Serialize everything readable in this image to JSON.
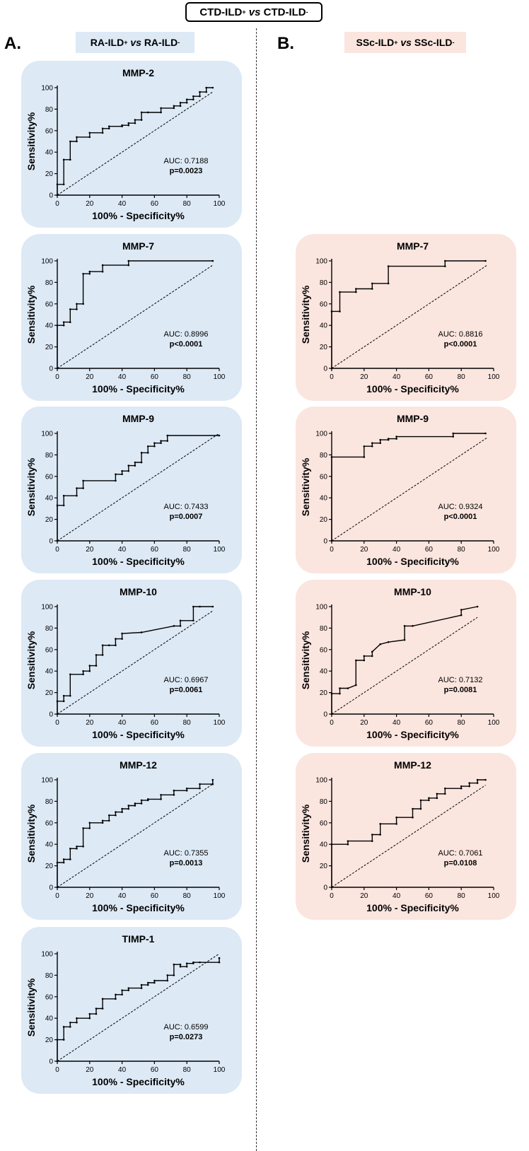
{
  "header": {
    "title_left": "CTD-ILD",
    "title_left_sup": "+",
    "title_vs": "vs",
    "title_right": "CTD-ILD",
    "title_right_sup": "-"
  },
  "columns": [
    {
      "letter": "A.",
      "group_a": "RA-ILD",
      "group_a_sup": "+",
      "vs": "vs",
      "group_b": "RA-ILD",
      "group_b_sup": "-"
    },
    {
      "letter": "B.",
      "group_a": "SSc-ILD",
      "group_a_sup": "+",
      "vs": "vs",
      "group_b": "SSc-ILD",
      "group_b_sup": "-"
    }
  ],
  "colors": {
    "ra_bg": "#dde9f5",
    "ssc_bg": "#fbe5df",
    "line": "#000000"
  },
  "chart_data": [
    {
      "id": "ra-mmp2",
      "type": "line",
      "title": "MMP-2",
      "xlabel": "100% - Specificity%",
      "ylabel": "Sensitivity%",
      "xlim": [
        0,
        100
      ],
      "ylim": [
        0,
        100
      ],
      "xticks": [
        0,
        20,
        40,
        60,
        80,
        100
      ],
      "yticks": [
        0,
        20,
        40,
        60,
        80,
        100
      ],
      "auc_label": "AUC: 0.7188",
      "p_label": "p=0.0023",
      "reference_line": [
        [
          0,
          0
        ],
        [
          96,
          96
        ]
      ],
      "series": [
        {
          "name": "ROC",
          "x": [
            0,
            0,
            4,
            4,
            8,
            8,
            12,
            12,
            20,
            20,
            28,
            28,
            32,
            32,
            40,
            40,
            44,
            44,
            48,
            48,
            52,
            52,
            56,
            56,
            64,
            64,
            72,
            72,
            76,
            76,
            80,
            80,
            84,
            84,
            88,
            88,
            92,
            92,
            96
          ],
          "y": [
            0,
            10,
            10,
            33,
            33,
            50,
            50,
            54,
            54,
            58,
            58,
            62,
            62,
            64,
            64,
            65,
            65,
            67,
            67,
            70,
            70,
            77,
            77,
            77,
            77,
            81,
            81,
            83,
            83,
            86,
            86,
            89,
            89,
            92,
            92,
            96,
            96,
            100,
            100
          ]
        }
      ]
    },
    {
      "id": "ra-mmp7",
      "type": "line",
      "title": "MMP-7",
      "xlabel": "100% - Specificity%",
      "ylabel": "Sensitivity%",
      "xlim": [
        0,
        100
      ],
      "ylim": [
        0,
        100
      ],
      "xticks": [
        0,
        20,
        40,
        60,
        80,
        100
      ],
      "yticks": [
        0,
        20,
        40,
        60,
        80,
        100
      ],
      "auc_label": "AUC: 0.8996",
      "p_label": "p<0.0001",
      "reference_line": [
        [
          0,
          0
        ],
        [
          96,
          96
        ]
      ],
      "series": [
        {
          "name": "ROC",
          "x": [
            0,
            0,
            4,
            4,
            8,
            8,
            12,
            12,
            16,
            16,
            20,
            20,
            28,
            28,
            44,
            44,
            96
          ],
          "y": [
            0,
            40,
            40,
            43,
            43,
            55,
            55,
            60,
            60,
            88,
            88,
            90,
            90,
            96,
            96,
            100,
            100
          ]
        }
      ]
    },
    {
      "id": "ra-mmp9",
      "type": "line",
      "title": "MMP-9",
      "xlabel": "100% - Specificity%",
      "ylabel": "Sensitivity%",
      "xlim": [
        0,
        100
      ],
      "ylim": [
        0,
        100
      ],
      "xticks": [
        0,
        20,
        40,
        60,
        80,
        100
      ],
      "yticks": [
        0,
        20,
        40,
        60,
        80,
        100
      ],
      "auc_label": "AUC: 0.7433",
      "p_label": "p=0.0007",
      "reference_line": [
        [
          0,
          0
        ],
        [
          100,
          100
        ]
      ],
      "series": [
        {
          "name": "ROC",
          "x": [
            0,
            0,
            4,
            4,
            12,
            12,
            16,
            16,
            36,
            36,
            40,
            40,
            44,
            44,
            48,
            48,
            52,
            52,
            56,
            56,
            60,
            60,
            64,
            64,
            68,
            68,
            100
          ],
          "y": [
            0,
            33,
            33,
            42,
            42,
            49,
            49,
            56,
            56,
            62,
            62,
            65,
            65,
            70,
            70,
            73,
            73,
            82,
            82,
            88,
            88,
            91,
            91,
            93,
            93,
            98,
            98
          ]
        }
      ]
    },
    {
      "id": "ra-mmp10",
      "type": "line",
      "title": "MMP-10",
      "xlabel": "100% - Specificity%",
      "ylabel": "Sensitivity%",
      "xlim": [
        0,
        100
      ],
      "ylim": [
        0,
        100
      ],
      "xticks": [
        0,
        20,
        40,
        60,
        80,
        100
      ],
      "yticks": [
        0,
        20,
        40,
        60,
        80,
        100
      ],
      "auc_label": "AUC: 0.6967",
      "p_label": "p=0.0061",
      "reference_line": [
        [
          0,
          0
        ],
        [
          96,
          96
        ]
      ],
      "series": [
        {
          "name": "ROC",
          "x": [
            0,
            0,
            4,
            4,
            8,
            8,
            16,
            16,
            20,
            20,
            24,
            24,
            28,
            28,
            32,
            32,
            36,
            36,
            40,
            40,
            52,
            72,
            76,
            76,
            84,
            84,
            88,
            96
          ],
          "y": [
            0,
            12,
            12,
            17,
            17,
            37,
            37,
            40,
            40,
            45,
            45,
            55,
            55,
            64,
            64,
            64,
            64,
            70,
            70,
            75,
            76,
            82,
            82,
            87,
            87,
            100,
            100,
            100
          ]
        }
      ]
    },
    {
      "id": "ra-mmp12",
      "type": "line",
      "title": "MMP-12",
      "xlabel": "100% - Specificity%",
      "ylabel": "Sensitivity%",
      "xlim": [
        0,
        100
      ],
      "ylim": [
        0,
        100
      ],
      "xticks": [
        0,
        20,
        40,
        60,
        80,
        100
      ],
      "yticks": [
        0,
        20,
        40,
        60,
        80,
        100
      ],
      "auc_label": "AUC: 0.7355",
      "p_label": "p=0.0013",
      "reference_line": [
        [
          0,
          0
        ],
        [
          96,
          96
        ]
      ],
      "series": [
        {
          "name": "ROC",
          "x": [
            0,
            0,
            4,
            4,
            8,
            8,
            12,
            12,
            16,
            16,
            20,
            20,
            28,
            28,
            32,
            32,
            36,
            36,
            40,
            40,
            44,
            44,
            48,
            48,
            52,
            52,
            56,
            56,
            64,
            64,
            72,
            72,
            80,
            80,
            88,
            88,
            96,
            96
          ],
          "y": [
            0,
            23,
            23,
            26,
            26,
            36,
            36,
            38,
            38,
            55,
            55,
            60,
            60,
            62,
            62,
            67,
            67,
            70,
            70,
            73,
            73,
            76,
            76,
            78,
            78,
            81,
            81,
            82,
            82,
            86,
            86,
            90,
            90,
            92,
            92,
            96,
            96,
            100
          ]
        }
      ]
    },
    {
      "id": "ra-timp1",
      "type": "line",
      "title": "TIMP-1",
      "xlabel": "100% - Specificity%",
      "ylabel": "Sensitivity%",
      "xlim": [
        0,
        100
      ],
      "ylim": [
        0,
        100
      ],
      "xticks": [
        0,
        20,
        40,
        60,
        80,
        100
      ],
      "yticks": [
        0,
        20,
        40,
        60,
        80,
        100
      ],
      "auc_label": "AUC: 0.6599",
      "p_label": "p=0.0273",
      "reference_line": [
        [
          0,
          0
        ],
        [
          100,
          100
        ]
      ],
      "series": [
        {
          "name": "ROC",
          "x": [
            0,
            0,
            4,
            4,
            8,
            8,
            12,
            12,
            20,
            20,
            24,
            24,
            28,
            28,
            36,
            36,
            40,
            40,
            44,
            44,
            52,
            52,
            56,
            56,
            60,
            60,
            68,
            68,
            72,
            72,
            76,
            76,
            80,
            80,
            84,
            84,
            88,
            88,
            100,
            100
          ],
          "y": [
            0,
            20,
            20,
            32,
            32,
            36,
            36,
            40,
            40,
            44,
            44,
            49,
            49,
            58,
            58,
            62,
            62,
            66,
            66,
            68,
            68,
            71,
            71,
            73,
            73,
            75,
            75,
            80,
            80,
            90,
            90,
            88,
            88,
            91,
            91,
            92,
            92,
            92,
            92,
            96
          ]
        }
      ]
    },
    {
      "id": "ssc-mmp7",
      "type": "line",
      "title": "MMP-7",
      "xlabel": "100% - Specificity%",
      "ylabel": "Sensitivity%",
      "xlim": [
        0,
        100
      ],
      "ylim": [
        0,
        100
      ],
      "xticks": [
        0,
        20,
        40,
        60,
        80,
        100
      ],
      "yticks": [
        0,
        20,
        40,
        60,
        80,
        100
      ],
      "auc_label": "AUC: 0.8816",
      "p_label": "p<0.0001",
      "reference_line": [
        [
          0,
          0
        ],
        [
          96,
          96
        ]
      ],
      "series": [
        {
          "name": "ROC",
          "x": [
            0,
            0,
            5,
            5,
            15,
            15,
            25,
            25,
            35,
            35,
            70,
            70,
            95
          ],
          "y": [
            0,
            53,
            53,
            71,
            71,
            74,
            74,
            79,
            79,
            95,
            95,
            100,
            100
          ]
        }
      ]
    },
    {
      "id": "ssc-mmp9",
      "type": "line",
      "title": "MMP-9",
      "xlabel": "100% - Specificity%",
      "ylabel": "Sensitivity%",
      "xlim": [
        0,
        100
      ],
      "ylim": [
        0,
        100
      ],
      "xticks": [
        0,
        20,
        40,
        60,
        80,
        100
      ],
      "yticks": [
        0,
        20,
        40,
        60,
        80,
        100
      ],
      "auc_label": "AUC: 0.9324",
      "p_label": "p<0.0001",
      "reference_line": [
        [
          0,
          0
        ],
        [
          96,
          96
        ]
      ],
      "series": [
        {
          "name": "ROC",
          "x": [
            0,
            0,
            20,
            20,
            25,
            25,
            30,
            30,
            35,
            35,
            40,
            40,
            75,
            75,
            95
          ],
          "y": [
            0,
            78,
            78,
            88,
            88,
            91,
            91,
            94,
            94,
            95,
            95,
            97,
            97,
            100,
            100
          ]
        }
      ]
    },
    {
      "id": "ssc-mmp10",
      "type": "line",
      "title": "MMP-10",
      "xlabel": "100% - Specificity%",
      "ylabel": "Sensitivity%",
      "xlim": [
        0,
        100
      ],
      "ylim": [
        0,
        100
      ],
      "xticks": [
        0,
        20,
        40,
        60,
        80,
        100
      ],
      "yticks": [
        0,
        20,
        40,
        60,
        80,
        100
      ],
      "auc_label": "AUC: 0.7132",
      "p_label": "p=0.0081",
      "reference_line": [
        [
          0,
          0
        ],
        [
          90,
          90
        ]
      ],
      "series": [
        {
          "name": "ROC",
          "x": [
            0,
            0,
            5,
            5,
            10,
            15,
            15,
            20,
            20,
            25,
            25,
            30,
            35,
            45,
            45,
            50,
            80,
            80,
            90
          ],
          "y": [
            0,
            19,
            19,
            24,
            24,
            27,
            50,
            50,
            54,
            54,
            58,
            65,
            67,
            69,
            82,
            82,
            92,
            97,
            100
          ]
        }
      ]
    },
    {
      "id": "ssc-mmp12",
      "type": "line",
      "title": "MMP-12",
      "xlabel": "100% - Specificity%",
      "ylabel": "Sensitivity%",
      "xlim": [
        0,
        100
      ],
      "ylim": [
        0,
        100
      ],
      "xticks": [
        0,
        20,
        40,
        60,
        80,
        100
      ],
      "yticks": [
        0,
        20,
        40,
        60,
        80,
        100
      ],
      "auc_label": "AUC: 0.7061",
      "p_label": "p=0.0108",
      "reference_line": [
        [
          0,
          0
        ],
        [
          95,
          95
        ]
      ],
      "series": [
        {
          "name": "ROC",
          "x": [
            0,
            0,
            10,
            10,
            25,
            25,
            30,
            30,
            40,
            40,
            50,
            50,
            55,
            55,
            60,
            60,
            65,
            65,
            70,
            70,
            80,
            80,
            85,
            85,
            90,
            90,
            95
          ],
          "y": [
            0,
            40,
            40,
            43,
            43,
            49,
            49,
            59,
            59,
            65,
            65,
            73,
            73,
            81,
            81,
            83,
            83,
            87,
            87,
            92,
            92,
            94,
            94,
            97,
            97,
            100,
            100
          ]
        }
      ]
    }
  ]
}
